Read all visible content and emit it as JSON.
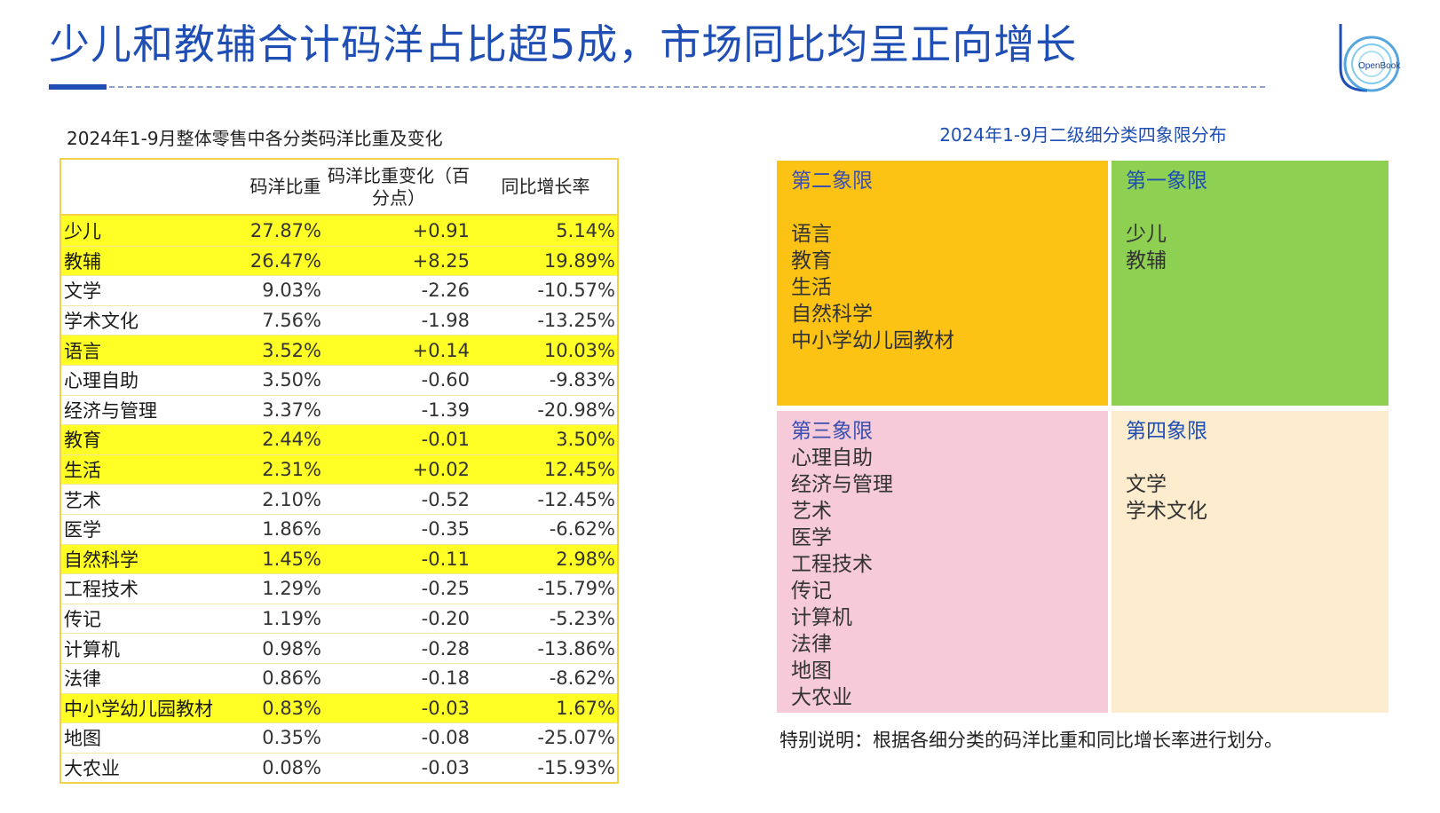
{
  "header": {
    "title": "少儿和教辅合计码洋占比超5成，市场同比均呈正向增长"
  },
  "logo": {
    "text": "OpenBook"
  },
  "table": {
    "caption": "2024年1-9月整体零售中各分类码洋比重及变化",
    "columns": [
      "",
      "码洋比重",
      "码洋比重变化（百分点）",
      "同比增长率"
    ],
    "rows": [
      {
        "name": "少儿",
        "share": "27.87%",
        "change": "+0.91",
        "growth": "5.14%",
        "highlight": true
      },
      {
        "name": "教辅",
        "share": "26.47%",
        "change": "+8.25",
        "growth": "19.89%",
        "highlight": true
      },
      {
        "name": "文学",
        "share": "9.03%",
        "change": "-2.26",
        "growth": "-10.57%",
        "highlight": false
      },
      {
        "name": "学术文化",
        "share": "7.56%",
        "change": "-1.98",
        "growth": "-13.25%",
        "highlight": false
      },
      {
        "name": "语言",
        "share": "3.52%",
        "change": "+0.14",
        "growth": "10.03%",
        "highlight": true
      },
      {
        "name": "心理自助",
        "share": "3.50%",
        "change": "-0.60",
        "growth": "-9.83%",
        "highlight": false
      },
      {
        "name": "经济与管理",
        "share": "3.37%",
        "change": "-1.39",
        "growth": "-20.98%",
        "highlight": false
      },
      {
        "name": "教育",
        "share": "2.44%",
        "change": "-0.01",
        "growth": "3.50%",
        "highlight": true
      },
      {
        "name": "生活",
        "share": "2.31%",
        "change": "+0.02",
        "growth": "12.45%",
        "highlight": true
      },
      {
        "name": "艺术",
        "share": "2.10%",
        "change": "-0.52",
        "growth": "-12.45%",
        "highlight": false
      },
      {
        "name": "医学",
        "share": "1.86%",
        "change": "-0.35",
        "growth": "-6.62%",
        "highlight": false
      },
      {
        "name": "自然科学",
        "share": "1.45%",
        "change": "-0.11",
        "growth": "2.98%",
        "highlight": true
      },
      {
        "name": "工程技术",
        "share": "1.29%",
        "change": "-0.25",
        "growth": "-15.79%",
        "highlight": false
      },
      {
        "name": "传记",
        "share": "1.19%",
        "change": "-0.20",
        "growth": "-5.23%",
        "highlight": false
      },
      {
        "name": "计算机",
        "share": "0.98%",
        "change": "-0.28",
        "growth": "-13.86%",
        "highlight": false
      },
      {
        "name": "法律",
        "share": "0.86%",
        "change": "-0.18",
        "growth": "-8.62%",
        "highlight": false
      },
      {
        "name": "中小学幼儿园教材",
        "share": "0.83%",
        "change": "-0.03",
        "growth": "1.67%",
        "highlight": true
      },
      {
        "name": "地图",
        "share": "0.35%",
        "change": "-0.08",
        "growth": "-25.07%",
        "highlight": false
      },
      {
        "name": "大农业",
        "share": "0.08%",
        "change": "-0.03",
        "growth": "-15.93%",
        "highlight": false
      }
    ]
  },
  "quadrants": {
    "caption": "2024年1-9月二级细分类四象限分布",
    "q2": {
      "title": "第二象限",
      "items": [
        "语言",
        "教育",
        "生活",
        "自然科学",
        "中小学幼儿园教材"
      ]
    },
    "q1": {
      "title": "第一象限",
      "items": [
        "少儿",
        "教辅"
      ]
    },
    "q3": {
      "title": "第三象限",
      "items": [
        "心理自助",
        "经济与管理",
        "艺术",
        "医学",
        "工程技术",
        "传记",
        "计算机",
        "法律",
        "地图",
        "大农业"
      ]
    },
    "q4": {
      "title": "第四象限",
      "items": [
        "文学",
        "学术文化"
      ]
    },
    "note": "特别说明：根据各细分类的码洋比重和同比增长率进行划分。"
  },
  "colors": {
    "title_blue": "#1f4fb4",
    "row_highlight": "#ffff25",
    "q2_bg": "#fcc214",
    "q1_bg": "#8ed052",
    "q3_bg": "#f6cad9",
    "q4_bg": "#fdeccd"
  }
}
